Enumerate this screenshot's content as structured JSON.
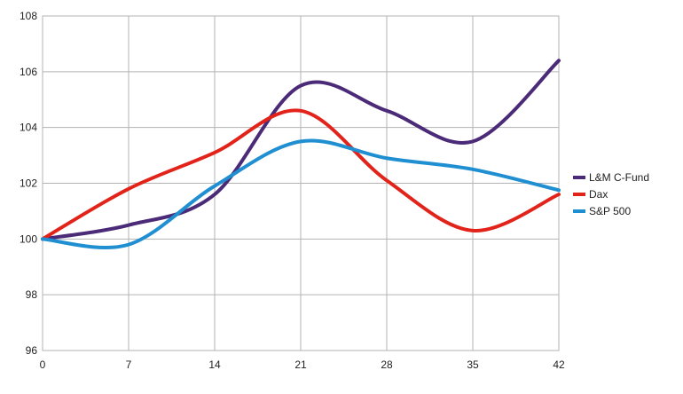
{
  "chart_data": {
    "type": "line",
    "title": "",
    "xlabel": "",
    "ylabel": "",
    "x": [
      0,
      7,
      14,
      21,
      28,
      35,
      42
    ],
    "xlim": [
      0,
      42
    ],
    "ylim": [
      96,
      108
    ],
    "x_ticks": [
      "0",
      "7",
      "14",
      "21",
      "28",
      "35",
      "42"
    ],
    "y_ticks": [
      "96",
      "98",
      "100",
      "102",
      "104",
      "106",
      "108"
    ],
    "grid": true,
    "legend_position": "right",
    "series": [
      {
        "name": "L&M C-Fund",
        "color": "#4b2a78",
        "values": [
          100.0,
          100.5,
          101.6,
          105.5,
          104.6,
          103.5,
          106.4
        ]
      },
      {
        "name": "Dax",
        "color": "#e2231a",
        "values": [
          100.0,
          101.8,
          103.1,
          104.6,
          102.1,
          100.3,
          101.6
        ]
      },
      {
        "name": "S&P 500",
        "color": "#1f8fd1",
        "values": [
          100.0,
          99.8,
          101.9,
          103.5,
          102.9,
          102.5,
          101.75
        ]
      }
    ]
  }
}
